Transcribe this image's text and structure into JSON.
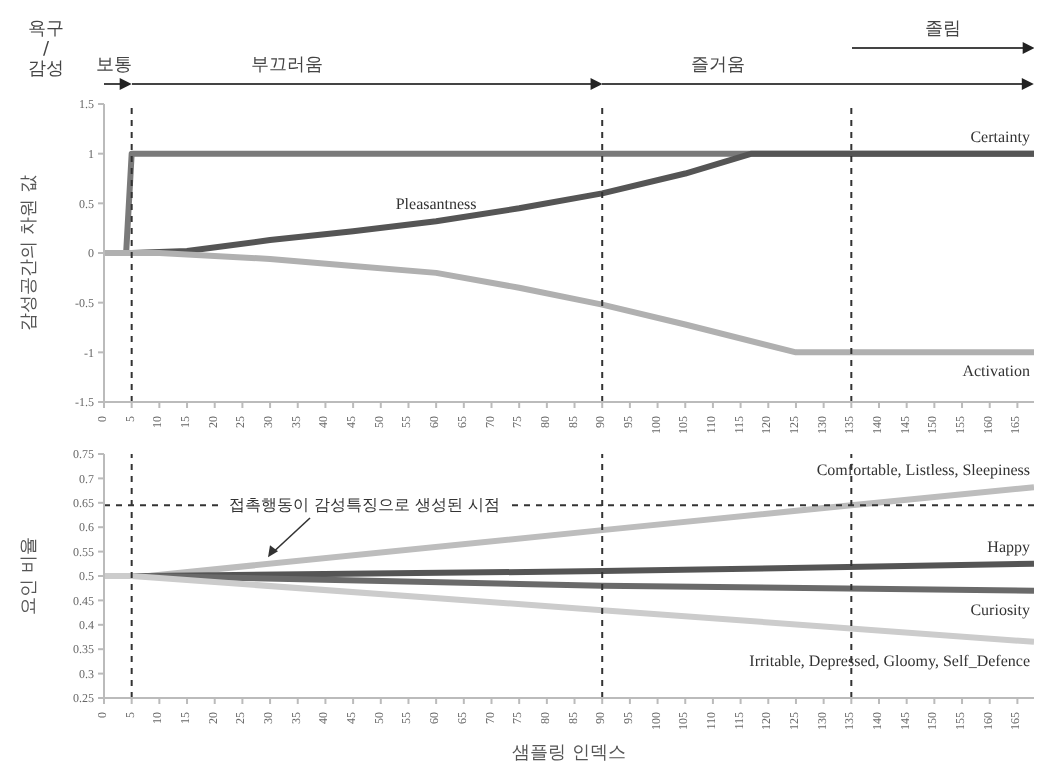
{
  "chart_data": [
    {
      "type": "line",
      "ylabel": "감성공간의 차원 값",
      "xlim": [
        0,
        168
      ],
      "xticks": [
        0,
        5,
        10,
        15,
        20,
        25,
        30,
        35,
        40,
        45,
        50,
        55,
        60,
        65,
        70,
        75,
        80,
        85,
        90,
        95,
        100,
        105,
        110,
        115,
        120,
        125,
        130,
        135,
        140,
        145,
        150,
        155,
        160,
        165
      ],
      "ylim": [
        -1.5,
        1.5
      ],
      "yticks": [
        -1.5,
        -1,
        -0.5,
        0,
        0.5,
        1,
        1.5
      ],
      "series": [
        {
          "name": "Certainty",
          "color": "#7a7a7a",
          "x": [
            0,
            4,
            5,
            168
          ],
          "values": [
            0,
            0,
            1,
            1
          ]
        },
        {
          "name": "Pleasantness",
          "color": "#555555",
          "x": [
            0,
            5,
            15,
            30,
            45,
            60,
            75,
            90,
            105,
            117,
            168
          ],
          "values": [
            0,
            0,
            0.02,
            0.13,
            0.22,
            0.32,
            0.45,
            0.6,
            0.8,
            1,
            1
          ]
        },
        {
          "name": "Activation",
          "color": "#b0b0b0",
          "x": [
            0,
            10,
            30,
            45,
            60,
            75,
            90,
            105,
            125,
            168
          ],
          "values": [
            0,
            0,
            -0.06,
            -0.13,
            -0.2,
            -0.35,
            -0.52,
            -0.72,
            -1,
            -1
          ]
        }
      ],
      "ref_lines": [
        {
          "axis": "x",
          "value": 5,
          "line_style": "dashed"
        },
        {
          "axis": "x",
          "value": 90,
          "line_style": "dashed"
        },
        {
          "axis": "x",
          "value": 135,
          "line_style": "dashed"
        }
      ],
      "annotations": [
        "욕구",
        "/",
        "감성",
        "보통",
        "부끄러움",
        "즐거움",
        "졸림"
      ]
    },
    {
      "type": "line",
      "ylabel": "요인 비율",
      "xlabel": "샘플링 인덱스",
      "xlim": [
        0,
        168
      ],
      "xticks": [
        0,
        5,
        10,
        15,
        20,
        25,
        30,
        35,
        40,
        45,
        50,
        55,
        60,
        65,
        70,
        75,
        80,
        85,
        90,
        95,
        100,
        105,
        110,
        115,
        120,
        125,
        130,
        135,
        140,
        145,
        150,
        155,
        160,
        165
      ],
      "ylim": [
        0.25,
        0.75
      ],
      "yticks": [
        0.25,
        0.3,
        0.35,
        0.4,
        0.45,
        0.5,
        0.55,
        0.6,
        0.65,
        0.7,
        0.75
      ],
      "series": [
        {
          "name": "Comfortable, Listless, Sleepiness",
          "color": "#bdbdbd",
          "x": [
            0,
            8,
            90,
            135,
            168
          ],
          "values": [
            0.5,
            0.5,
            0.594,
            0.645,
            0.682
          ]
        },
        {
          "name": "Happy",
          "color": "#555555",
          "x": [
            0,
            8,
            90,
            168
          ],
          "values": [
            0.5,
            0.5,
            0.51,
            0.525
          ]
        },
        {
          "name": "Curiosity",
          "color": "#6a6a6a",
          "x": [
            0,
            8,
            90,
            168
          ],
          "values": [
            0.5,
            0.5,
            0.48,
            0.47
          ]
        },
        {
          "name": "Irritable, Depressed, Gloomy, Self_Defence",
          "color": "#cccccc",
          "x": [
            0,
            5,
            90,
            168
          ],
          "values": [
            0.5,
            0.5,
            0.43,
            0.365
          ]
        }
      ],
      "ref_lines": [
        {
          "axis": "x",
          "value": 5,
          "line_style": "dashed"
        },
        {
          "axis": "x",
          "value": 90,
          "line_style": "dashed"
        },
        {
          "axis": "x",
          "value": 135,
          "line_style": "dashed"
        },
        {
          "axis": "y",
          "value": 0.645,
          "line_style": "dashed",
          "label": "접촉행동이 감성특징으로 생성된 시점"
        }
      ]
    }
  ]
}
